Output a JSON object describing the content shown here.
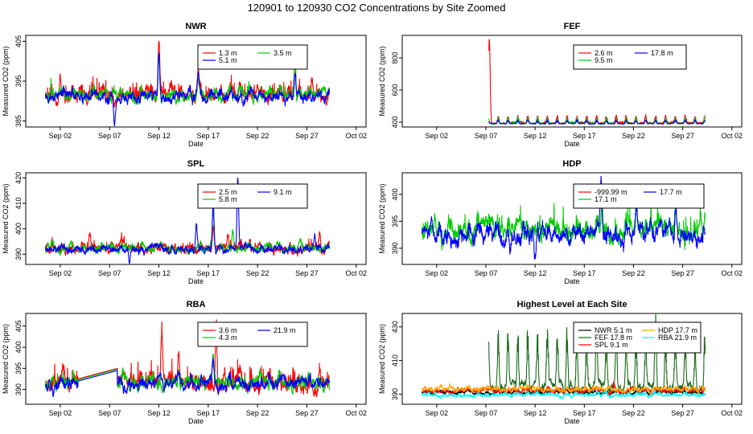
{
  "title": "120901  to  120930 CO2 Concentrations by Site Zoomed",
  "colors": {
    "red": "#ff0000",
    "green": "#00cc00",
    "blue": "#0000ff",
    "black": "#000000",
    "orange": "#ffa500",
    "cyan": "#00ffff",
    "darkgreen": "#1a6b1a"
  },
  "chart_data": [
    {
      "panel": "NWR",
      "type": "line",
      "title": "NWR",
      "xlabel": "Date",
      "ylabel": "Measured CO2 (ppm)",
      "x_ticks": [
        "Sep 02",
        "Sep 07",
        "Sep 12",
        "Sep 17",
        "Sep 22",
        "Sep 27",
        "Oct 02"
      ],
      "y_ticks": [
        "385",
        "395",
        "405"
      ],
      "ylim": [
        383.5,
        406.5
      ],
      "legend_position": "top-right",
      "series": [
        {
          "name": "1.3 m",
          "color": "#ff0000",
          "start_day": 31.5,
          "end_day": 60.3,
          "base": 391.5,
          "noise": 1.4,
          "extra": 0.8,
          "peaks": [
            [
              33.0,
              4
            ],
            [
              43.0,
              13
            ],
            [
              47.0,
              6
            ],
            [
              56.8,
              8
            ],
            [
              58.5,
              4
            ]
          ]
        },
        {
          "name": "3.5 m",
          "color": "#00cc00",
          "start_day": 31.5,
          "end_day": 60.3,
          "base": 391.3,
          "noise": 1.3,
          "extra": 0.4,
          "peaks": [
            [
              43.0,
              12
            ],
            [
              47.0,
              6
            ],
            [
              56.8,
              7
            ]
          ]
        },
        {
          "name": "5.1 m",
          "color": "#0000ff",
          "start_day": 31.5,
          "end_day": 60.3,
          "base": 391.0,
          "noise": 1.2,
          "extra": 0,
          "peaks": [
            [
              43.0,
              11
            ],
            [
              47.0,
              5
            ],
            [
              56.8,
              7
            ],
            [
              38.5,
              -5
            ]
          ]
        }
      ]
    },
    {
      "panel": "FEF",
      "type": "line",
      "title": "FEF",
      "xlabel": "Date",
      "ylabel": "Measured CO2 (ppm)",
      "x_ticks": [
        "Sep 02",
        "Sep 07",
        "Sep 12",
        "Sep 17",
        "Sep 22",
        "Sep 27",
        "Oct 02"
      ],
      "y_ticks": [
        "400",
        "600",
        "800"
      ],
      "ylim": [
        370,
        940
      ],
      "legend_position": "top-right",
      "series": [
        {
          "name": "2.6 m",
          "color": "#ff0000",
          "start_day": 38.3,
          "end_day": 60.3,
          "base": 395,
          "noise": 4,
          "extra": 0,
          "diurnal": 38,
          "peaks": [
            [
              38.35,
              500
            ]
          ]
        },
        {
          "name": "9.5 m",
          "color": "#00cc00",
          "start_day": 38.3,
          "end_day": 60.3,
          "base": 393,
          "noise": 3,
          "extra": 0,
          "diurnal": 28,
          "peaks": []
        },
        {
          "name": "17.8 m",
          "color": "#0000ff",
          "start_day": 38.3,
          "end_day": 60.3,
          "base": 391,
          "noise": 2,
          "extra": 0,
          "diurnal": 18,
          "peaks": []
        }
      ]
    },
    {
      "panel": "SPL",
      "type": "line",
      "title": "SPL",
      "xlabel": "Date",
      "ylabel": "Measured CO2 (ppm)",
      "x_ticks": [
        "Sep 02",
        "Sep 07",
        "Sep 12",
        "Sep 17",
        "Sep 22",
        "Sep 27",
        "Oct 02"
      ],
      "y_ticks": [
        "390",
        "400",
        "410",
        "420"
      ],
      "ylim": [
        386,
        422
      ],
      "legend_position": "top-right",
      "series": [
        {
          "name": "2.5 m",
          "color": "#ff0000",
          "start_day": 31.5,
          "end_day": 60.3,
          "base": 392.3,
          "noise": 1.5,
          "extra": 0.6,
          "peaks": [
            [
              36.0,
              6
            ],
            [
              48.5,
              8
            ],
            [
              50.0,
              6
            ],
            [
              59.3,
              6
            ]
          ]
        },
        {
          "name": "5.8 m",
          "color": "#00cc00",
          "start_day": 31.5,
          "end_day": 60.3,
          "base": 392.0,
          "noise": 1.4,
          "extra": 0.3,
          "peaks": [
            [
              48.5,
              17
            ],
            [
              50.5,
              8
            ]
          ]
        },
        {
          "name": "9.1 m",
          "color": "#0000ff",
          "start_day": 31.5,
          "end_day": 60.3,
          "base": 391.8,
          "noise": 1.3,
          "extra": 0,
          "peaks": [
            [
              48.5,
              18
            ],
            [
              51.0,
              28
            ],
            [
              40.0,
              -4
            ],
            [
              46.8,
              9
            ],
            [
              58.8,
              6
            ]
          ]
        }
      ]
    },
    {
      "panel": "HDP",
      "type": "line",
      "title": "HDP",
      "xlabel": "Date",
      "ylabel": "Measured CO2 (ppm)",
      "x_ticks": [
        "Sep 02",
        "Sep 07",
        "Sep 12",
        "Sep 17",
        "Sep 22",
        "Sep 27",
        "Oct 02"
      ],
      "y_ticks": [
        "390",
        "395",
        "400"
      ],
      "ylim": [
        387,
        404
      ],
      "legend_position": "top-right",
      "series": [
        {
          "name": "-999.99 m",
          "color": "#ff0000",
          "start_day": 31.5,
          "end_day": 60.3,
          "base": 392.5,
          "noise": 1.4,
          "extra": 0,
          "hidden_below": true,
          "peaks": []
        },
        {
          "name": "17.1 m",
          "color": "#00cc00",
          "start_day": 31.5,
          "end_day": 60.3,
          "base": 393.0,
          "noise": 1.5,
          "extra": 0.6,
          "peaks": [
            [
              32.8,
              4
            ],
            [
              49.8,
              5
            ],
            [
              53.3,
              6
            ],
            [
              57.3,
              5
            ],
            [
              59.8,
              3
            ]
          ]
        },
        {
          "name": "17.7 m",
          "color": "#0000ff",
          "start_day": 31.5,
          "end_day": 60.3,
          "base": 392.5,
          "noise": 1.4,
          "extra": 0,
          "peaks": [
            [
              32.5,
              3
            ],
            [
              49.7,
              10
            ],
            [
              53.3,
              5
            ],
            [
              57.3,
              4
            ],
            [
              43.0,
              -4
            ],
            [
              40.5,
              -2
            ]
          ]
        }
      ]
    },
    {
      "panel": "RBA",
      "type": "line",
      "title": "RBA",
      "xlabel": "Date",
      "ylabel": "Measured CO2 (ppm)",
      "x_ticks": [
        "Sep 02",
        "Sep 07",
        "Sep 12",
        "Sep 17",
        "Sep 22",
        "Sep 27",
        "Oct 02"
      ],
      "y_ticks": [
        "390",
        "395",
        "400",
        "405"
      ],
      "ylim": [
        386.5,
        408
      ],
      "legend_position": "top-right",
      "gap_days": [
        34.8,
        38.8
      ],
      "series": [
        {
          "name": "3.6 m",
          "color": "#ff0000",
          "start_day": 31.5,
          "end_day": 60.3,
          "base": 391.5,
          "noise": 1.6,
          "extra": 0.8,
          "peaks": [
            [
              43.3,
              12
            ],
            [
              45.0,
              8
            ],
            [
              48.8,
              17
            ],
            [
              33.3,
              3
            ],
            [
              59.3,
              3
            ]
          ]
        },
        {
          "name": "4.3 m",
          "color": "#00cc00",
          "start_day": 31.5,
          "end_day": 60.3,
          "base": 391.3,
          "noise": 1.4,
          "extra": 0.3,
          "peaks": [
            [
              48.5,
              6
            ],
            [
              45.0,
              4
            ]
          ]
        },
        {
          "name": "21.9 m",
          "color": "#0000ff",
          "start_day": 31.5,
          "end_day": 60.3,
          "base": 391.0,
          "noise": 1.3,
          "extra": 0,
          "peaks": [
            [
              48.5,
              5
            ],
            [
              45.0,
              3
            ],
            [
              32.3,
              -3
            ]
          ]
        }
      ]
    },
    {
      "panel": "Highest Level at Each Site",
      "type": "line",
      "title": "Highest Level at Each Site",
      "xlabel": "Date",
      "ylabel": "Measured CO2 (ppm)",
      "x_ticks": [
        "Sep 02",
        "Sep 07",
        "Sep 12",
        "Sep 17",
        "Sep 22",
        "Sep 27",
        "Oct 02"
      ],
      "y_ticks": [
        "390",
        "410",
        "430"
      ],
      "ylim": [
        384,
        438
      ],
      "legend_position": "top-right",
      "series": [
        {
          "name": "NWR  5.1 m",
          "color": "#000000",
          "start_day": 31.5,
          "end_day": 60.3,
          "base": 391,
          "noise": 1.0,
          "extra": 0,
          "peaks": []
        },
        {
          "name": "FEF  17.8 m",
          "color": "#1a6b1a",
          "start_day": 38.3,
          "end_day": 60.3,
          "base": 394,
          "noise": 2.5,
          "extra": 0,
          "diurnal": 28,
          "peaks": [
            [
              55.2,
              14
            ]
          ]
        },
        {
          "name": "SPL  9.1 m",
          "color": "#ff0000",
          "start_day": 31.5,
          "end_day": 60.3,
          "base": 392,
          "noise": 1.2,
          "extra": 0,
          "peaks": [
            [
              51.0,
              6
            ]
          ]
        },
        {
          "name": "HDP  17.7 m",
          "color": "#ffa500",
          "start_day": 31.5,
          "end_day": 60.3,
          "base": 393,
          "noise": 1.4,
          "extra": 0,
          "peaks": []
        },
        {
          "name": "RBA  21.9 m",
          "color": "#00ffff",
          "start_day": 31.5,
          "end_day": 60.3,
          "base": 389.5,
          "noise": 1.0,
          "extra": 0,
          "peaks": []
        }
      ]
    }
  ]
}
